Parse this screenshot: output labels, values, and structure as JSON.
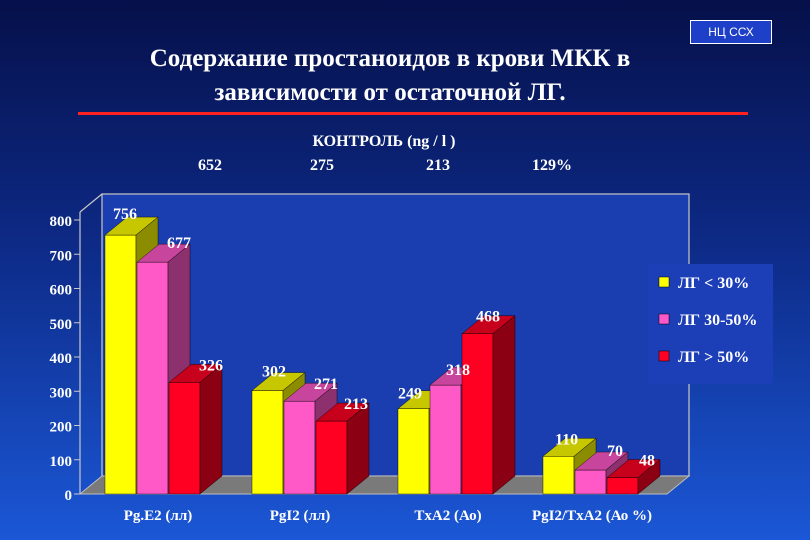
{
  "badge": "НЦ ССХ",
  "title_line1": "Содержание простаноидов в крови МКК в",
  "title_line2": "зависимости от остаточной ЛГ.",
  "control": {
    "label": "КОНТРОЛЬ (ng / l )",
    "values": [
      "652",
      "275",
      "213",
      "129%"
    ]
  },
  "colors": {
    "series": [
      "#ffff00",
      "#ff59c8",
      "#ff0022"
    ],
    "bg_top": "#06104a",
    "bg_bottom": "#1b57d6",
    "accent_rule": "#ff2222"
  },
  "chart_data": {
    "type": "bar",
    "categories": [
      "Pg.E2 (лл)",
      "PgI2 (лл)",
      "TxA2 (Ао)",
      "PgI2/TxA2 (Ао %)"
    ],
    "series": [
      {
        "name": "ЛГ < 30%",
        "values": [
          756,
          302,
          249,
          110
        ],
        "labels": [
          "756",
          "302",
          "249",
          "110"
        ]
      },
      {
        "name": "ЛГ 30-50%",
        "values": [
          677,
          271,
          318,
          70
        ],
        "labels": [
          "677",
          "271",
          "318",
          "70"
        ]
      },
      {
        "name": "ЛГ > 50%",
        "values": [
          326,
          213,
          468,
          48
        ],
        "labels": [
          "326",
          "213",
          "468",
          "48"
        ]
      }
    ],
    "ylim": [
      0,
      800
    ],
    "yticks": [
      "0",
      "100",
      "200",
      "300",
      "400",
      "500",
      "600",
      "700",
      "800"
    ],
    "grid": false,
    "legend_position": "right"
  }
}
